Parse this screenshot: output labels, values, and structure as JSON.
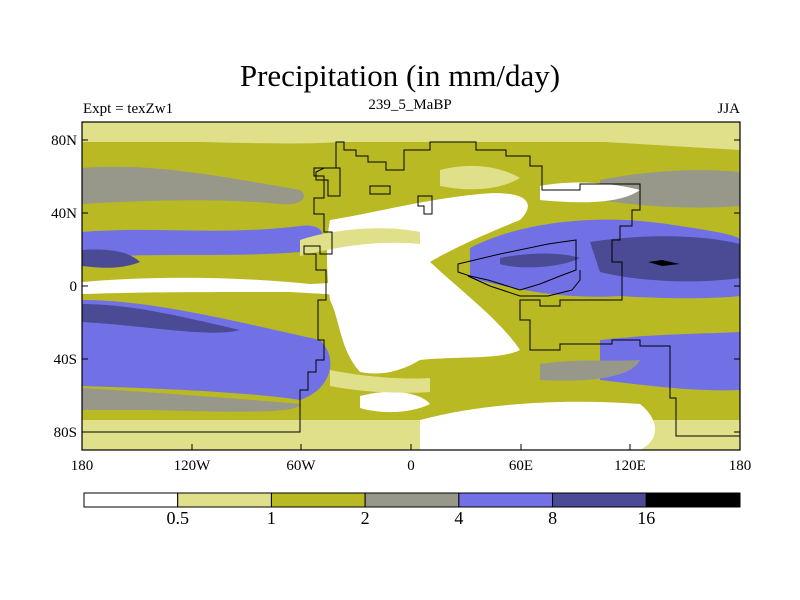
{
  "title": "Precipitation (in mm/day)",
  "subtitle_left": "Expt = texZw1",
  "subtitle_center": "239_5_MaBP",
  "subtitle_right": "JJA",
  "lat_ticks": [
    "80N",
    "40N",
    "0",
    "40S",
    "80S"
  ],
  "lon_ticks": [
    "180",
    "120W",
    "60W",
    "0",
    "60E",
    "120E",
    "180"
  ],
  "colorbar": {
    "levels": [
      "0.5",
      "1",
      "2",
      "4",
      "8",
      "16"
    ],
    "colors": [
      "#ffffff",
      "#e0e08a",
      "#b9b923",
      "#97978a",
      "#7171e5",
      "#4a4a95",
      "#000000"
    ]
  },
  "chart_data": {
    "type": "heatmap",
    "title": "Precipitation (in mm/day)",
    "variable": "Precipitation",
    "units": "mm/day",
    "season": "JJA",
    "experiment": "texZw1",
    "period": "239_5_MaBP",
    "x_range": [
      -180,
      180
    ],
    "y_range": [
      -90,
      90
    ],
    "contour_levels": [
      0.5,
      1,
      2,
      4,
      8,
      16
    ]
  }
}
